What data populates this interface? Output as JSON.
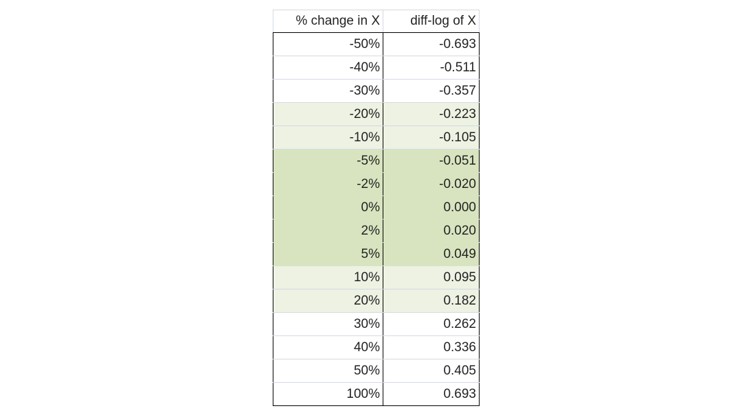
{
  "table": {
    "header": [
      "% change in X",
      "diff-log of X"
    ],
    "rows": [
      [
        "-50%",
        "-0.693"
      ],
      [
        "-40%",
        "-0.511"
      ],
      [
        "-30%",
        "-0.357"
      ],
      [
        "-20%",
        "-0.223"
      ],
      [
        "-10%",
        "-0.105"
      ],
      [
        "-5%",
        "-0.051"
      ],
      [
        "-2%",
        "-0.020"
      ],
      [
        "0%",
        "0.000"
      ],
      [
        "2%",
        "0.020"
      ],
      [
        "5%",
        "0.049"
      ],
      [
        "10%",
        "0.095"
      ],
      [
        "20%",
        "0.182"
      ],
      [
        "30%",
        "0.262"
      ],
      [
        "40%",
        "0.336"
      ],
      [
        "50%",
        "0.405"
      ],
      [
        "100%",
        "0.693"
      ]
    ]
  }
}
